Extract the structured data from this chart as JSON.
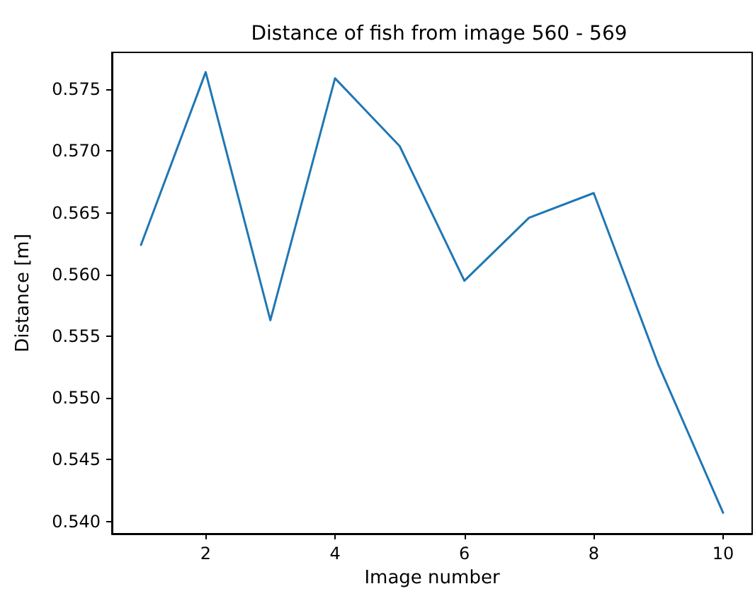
{
  "chart_data": {
    "type": "line",
    "title": "Distance of fish from image 560 - 569",
    "xlabel": "Image number",
    "ylabel": "Distance [m]",
    "x": [
      1,
      2,
      3,
      4,
      5,
      6,
      7,
      8,
      9,
      10
    ],
    "series": [
      {
        "color": "#1f77b4",
        "values": [
          0.5624,
          0.5764,
          0.5563,
          0.5759,
          0.5704,
          0.5595,
          0.5646,
          0.5666,
          0.5527,
          0.5407
        ]
      }
    ],
    "xlim": [
      0.55,
      10.45
    ],
    "xticks": [
      2,
      4,
      6,
      8,
      10
    ],
    "ylim": [
      0.539,
      0.578
    ],
    "yticks": [
      {
        "value": 0.54,
        "label": "0.540"
      },
      {
        "value": 0.545,
        "label": "0.545"
      },
      {
        "value": 0.55,
        "label": "0.550"
      },
      {
        "value": 0.555,
        "label": "0.555"
      },
      {
        "value": 0.56,
        "label": "0.560"
      },
      {
        "value": 0.565,
        "label": "0.565"
      },
      {
        "value": 0.57,
        "label": "0.570"
      },
      {
        "value": 0.575,
        "label": "0.575"
      }
    ],
    "grid": false,
    "marker": "none",
    "line_style": "solid"
  }
}
